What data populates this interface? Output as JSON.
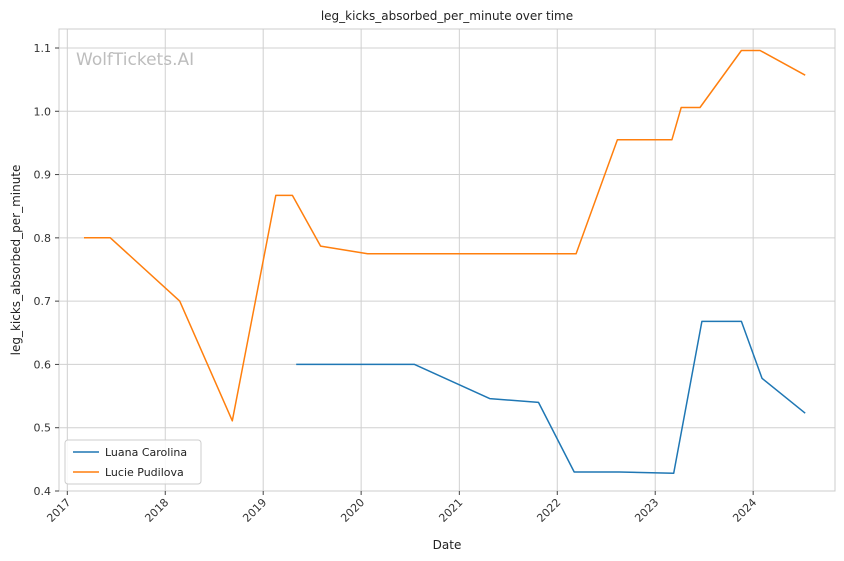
{
  "chart_data": {
    "type": "line",
    "title": "leg_kicks_absorbed_per_minute over time",
    "xlabel": "Date",
    "ylabel": "leg_kicks_absorbed_per_minute",
    "watermark": "WolfTickets.AI",
    "x_ticks": [
      "2017",
      "2018",
      "2019",
      "2020",
      "2021",
      "2022",
      "2023",
      "2024"
    ],
    "y_ticks": [
      "0.4",
      "0.5",
      "0.6",
      "0.7",
      "0.8",
      "0.9",
      "1.0",
      "1.1"
    ],
    "xlim": [
      "2016-12-01",
      "2024-11-01"
    ],
    "ylim": [
      0.4,
      1.13
    ],
    "grid": true,
    "legend_position": "lower-left",
    "series": [
      {
        "name": "Luana Carolina",
        "color": "#1f77b4",
        "points": [
          [
            "2019-05-04",
            0.6
          ],
          [
            "2020-07-18",
            0.6
          ],
          [
            "2021-04-24",
            0.546
          ],
          [
            "2021-10-23",
            0.54
          ],
          [
            "2022-03-05",
            0.43
          ],
          [
            "2022-08-20",
            0.43
          ],
          [
            "2023-03-11",
            0.428
          ],
          [
            "2023-06-24",
            0.668
          ],
          [
            "2023-11-18",
            0.668
          ],
          [
            "2024-02-03",
            0.578
          ],
          [
            "2024-07-13",
            0.523
          ]
        ]
      },
      {
        "name": "Lucie Pudilova",
        "color": "#ff7f0e",
        "points": [
          [
            "2017-03-04",
            0.8
          ],
          [
            "2017-06-10",
            0.8
          ],
          [
            "2018-02-24",
            0.7
          ],
          [
            "2018-09-08",
            0.511
          ],
          [
            "2019-02-17",
            0.867
          ],
          [
            "2019-04-20",
            0.867
          ],
          [
            "2019-08-03",
            0.787
          ],
          [
            "2020-01-25",
            0.775
          ],
          [
            "2022-03-12",
            0.775
          ],
          [
            "2022-08-13",
            0.955
          ],
          [
            "2023-03-04",
            0.955
          ],
          [
            "2023-04-08",
            1.006
          ],
          [
            "2023-06-17",
            1.006
          ],
          [
            "2023-11-18",
            1.096
          ],
          [
            "2024-01-27",
            1.096
          ],
          [
            "2024-07-13",
            1.057
          ]
        ]
      }
    ]
  }
}
